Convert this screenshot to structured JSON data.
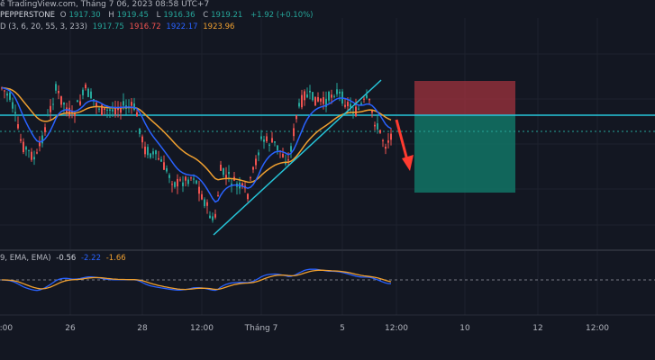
{
  "header": {
    "text": "ề TradingView.com, Tháng 7 06, 2023 08:58 UTC+7"
  },
  "symbol_legend": {
    "source": "PEPPERSTONE",
    "o_label": "O",
    "o": "1917.30",
    "h_label": "H",
    "h": "1919.45",
    "l_label": "L",
    "l": "1916.36",
    "c_label": "C",
    "c": "1919.21",
    "change": "+1.92 (+0.10%)"
  },
  "ma_legend": {
    "params": "D (3, 6, 20, 55, 3, 233)",
    "v1": "1917.75",
    "v2": "1916.72",
    "v3": "1922.17",
    "v4": "1923.96"
  },
  "macd_legend": {
    "params": "9, EMA, EMA)",
    "v1": "-0.56",
    "v2": "-2.22",
    "v3": "-1.66"
  },
  "x_axis": [
    "2:00",
    "26",
    "28",
    "12:00",
    "Tháng 7",
    "5",
    "12:00",
    "10",
    "12",
    "12:00"
  ],
  "colors": {
    "background": "#131722",
    "up": "#26a69a",
    "down": "#ef5350",
    "ma_fast": "#2962ff",
    "ma_slow": "#f0a030",
    "trendline": "#26c6da",
    "stop_zone": "#a0333d",
    "target_zone": "#127a6a",
    "arrow": "#ff3b30"
  }
}
